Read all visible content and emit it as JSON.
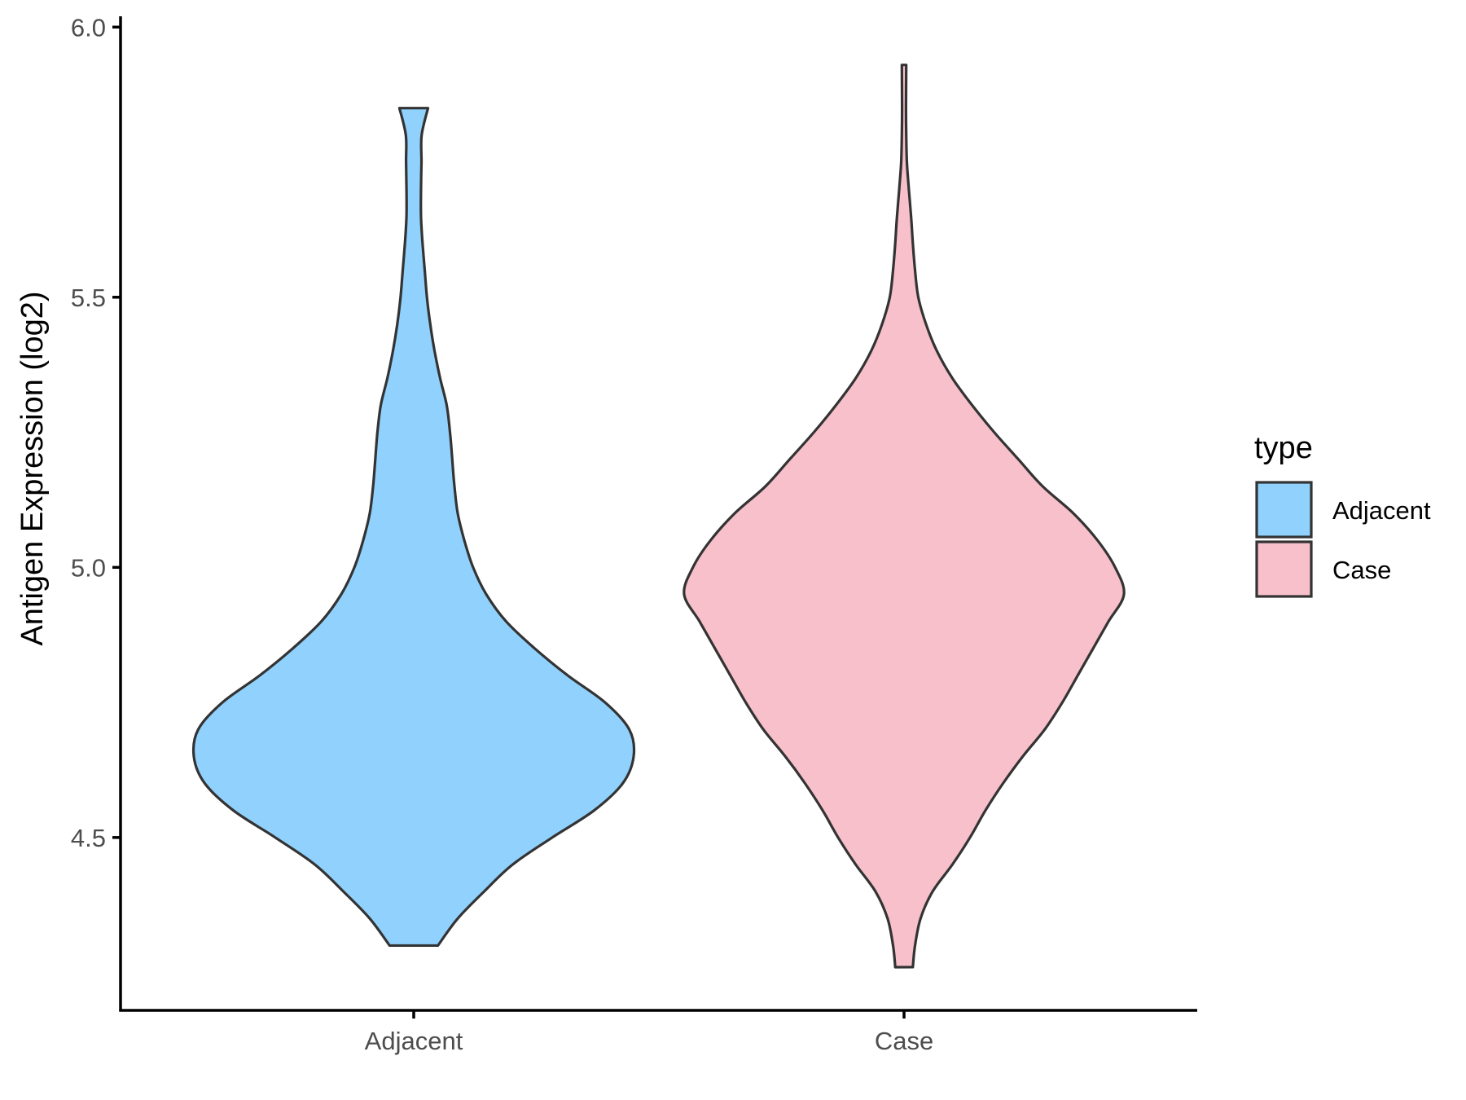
{
  "chart_data": {
    "type": "violin",
    "ylabel": "Antigen Expression (log2)",
    "xlabel": "",
    "ylim": [
      4.18,
      6.02
    ],
    "yticks": [
      4.5,
      5.0,
      5.5,
      6.0
    ],
    "ytick_labels": [
      "4.5",
      "5.0",
      "5.5",
      "6.0"
    ],
    "categories": [
      "Adjacent",
      "Case"
    ],
    "grid": false,
    "legend": {
      "title": "type",
      "position": "right",
      "items": [
        {
          "label": "Adjacent",
          "color": "#90D2FD"
        },
        {
          "label": "Case",
          "color": "#F7C0CB"
        }
      ]
    },
    "series": [
      {
        "name": "Adjacent",
        "color": "#90D2FD",
        "range": [
          4.3,
          5.85
        ],
        "density": [
          [
            4.3,
            0.11
          ],
          [
            4.35,
            0.2
          ],
          [
            4.4,
            0.32
          ],
          [
            4.45,
            0.45
          ],
          [
            4.5,
            0.63
          ],
          [
            4.55,
            0.82
          ],
          [
            4.6,
            0.95
          ],
          [
            4.65,
            1.0
          ],
          [
            4.7,
            0.98
          ],
          [
            4.75,
            0.87
          ],
          [
            4.8,
            0.7
          ],
          [
            4.85,
            0.55
          ],
          [
            4.9,
            0.42
          ],
          [
            4.95,
            0.33
          ],
          [
            5.0,
            0.27
          ],
          [
            5.05,
            0.23
          ],
          [
            5.1,
            0.2
          ],
          [
            5.15,
            0.185
          ],
          [
            5.2,
            0.175
          ],
          [
            5.25,
            0.165
          ],
          [
            5.3,
            0.15
          ],
          [
            5.35,
            0.12
          ],
          [
            5.4,
            0.095
          ],
          [
            5.45,
            0.075
          ],
          [
            5.5,
            0.06
          ],
          [
            5.55,
            0.05
          ],
          [
            5.6,
            0.04
          ],
          [
            5.65,
            0.033
          ],
          [
            5.7,
            0.033
          ],
          [
            5.75,
            0.035
          ],
          [
            5.8,
            0.036
          ],
          [
            5.85,
            0.065
          ]
        ]
      },
      {
        "name": "Case",
        "color": "#F7C0CB",
        "range": [
          4.26,
          5.93
        ],
        "density": [
          [
            4.26,
            0.04
          ],
          [
            4.3,
            0.05
          ],
          [
            4.35,
            0.075
          ],
          [
            4.4,
            0.13
          ],
          [
            4.45,
            0.22
          ],
          [
            4.5,
            0.3
          ],
          [
            4.55,
            0.37
          ],
          [
            4.6,
            0.45
          ],
          [
            4.65,
            0.54
          ],
          [
            4.7,
            0.64
          ],
          [
            4.75,
            0.72
          ],
          [
            4.8,
            0.79
          ],
          [
            4.85,
            0.86
          ],
          [
            4.9,
            0.93
          ],
          [
            4.95,
            1.0
          ],
          [
            5.0,
            0.96
          ],
          [
            5.05,
            0.88
          ],
          [
            5.1,
            0.77
          ],
          [
            5.15,
            0.63
          ],
          [
            5.2,
            0.52
          ],
          [
            5.25,
            0.41
          ],
          [
            5.3,
            0.31
          ],
          [
            5.35,
            0.22
          ],
          [
            5.4,
            0.15
          ],
          [
            5.45,
            0.1
          ],
          [
            5.5,
            0.065
          ],
          [
            5.55,
            0.05
          ],
          [
            5.6,
            0.04
          ],
          [
            5.65,
            0.032
          ],
          [
            5.7,
            0.022
          ],
          [
            5.75,
            0.013
          ],
          [
            5.8,
            0.01
          ],
          [
            5.85,
            0.009
          ],
          [
            5.93,
            0.01
          ]
        ]
      }
    ]
  }
}
